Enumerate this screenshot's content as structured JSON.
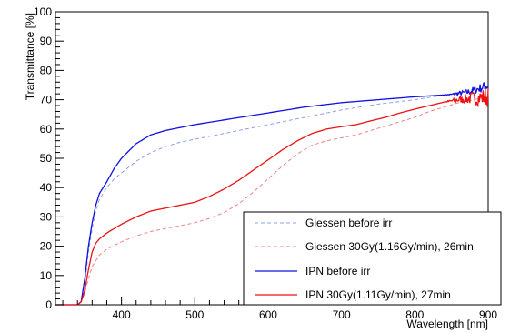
{
  "chart_data": {
    "type": "line",
    "title": "",
    "xlabel": "Wavelength [nm]",
    "ylabel": "Transmittance [%]",
    "xlim": [
      310,
      900
    ],
    "ylim": [
      0,
      100
    ],
    "xticks": [
      400,
      500,
      600,
      700,
      800,
      900
    ],
    "yticks": [
      0,
      10,
      20,
      30,
      40,
      50,
      60,
      70,
      80,
      90,
      100
    ],
    "x_tick_labels": [
      "400",
      "500",
      "600",
      "700",
      "800",
      "900"
    ],
    "y_tick_labels": [
      "0",
      "10",
      "20",
      "30",
      "40",
      "50",
      "60",
      "70",
      "80",
      "90",
      "100"
    ],
    "grid": false,
    "legend_position": "bottom-right",
    "series": [
      {
        "name": "Giessen before irr",
        "color": "#8ca0e6",
        "style": "dashed",
        "points": [
          [
            310,
            0
          ],
          [
            340,
            0
          ],
          [
            345,
            1
          ],
          [
            350,
            7
          ],
          [
            355,
            18
          ],
          [
            360,
            26
          ],
          [
            365,
            32
          ],
          [
            370,
            36
          ],
          [
            380,
            40
          ],
          [
            390,
            43
          ],
          [
            400,
            45
          ],
          [
            420,
            49
          ],
          [
            440,
            52
          ],
          [
            460,
            54
          ],
          [
            480,
            55.5
          ],
          [
            500,
            56.5
          ],
          [
            550,
            59
          ],
          [
            600,
            61.5
          ],
          [
            650,
            64
          ],
          [
            700,
            66.5
          ],
          [
            750,
            68.5
          ],
          [
            800,
            70
          ],
          [
            850,
            72
          ],
          [
            880,
            73.5
          ],
          [
            900,
            74
          ]
        ]
      },
      {
        "name": "Giessen 30Gy(1.16Gy/min), 26min",
        "color": "#f08080",
        "style": "dashed",
        "points": [
          [
            310,
            0
          ],
          [
            340,
            0
          ],
          [
            345,
            1
          ],
          [
            350,
            4
          ],
          [
            355,
            9
          ],
          [
            360,
            13
          ],
          [
            365,
            15
          ],
          [
            370,
            17
          ],
          [
            380,
            19
          ],
          [
            400,
            21.5
          ],
          [
            420,
            23.5
          ],
          [
            440,
            25
          ],
          [
            460,
            26
          ],
          [
            480,
            27
          ],
          [
            500,
            28
          ],
          [
            520,
            29.5
          ],
          [
            540,
            31.5
          ],
          [
            560,
            34.5
          ],
          [
            580,
            38.5
          ],
          [
            600,
            43
          ],
          [
            620,
            47.5
          ],
          [
            640,
            51.5
          ],
          [
            660,
            54.5
          ],
          [
            680,
            56
          ],
          [
            700,
            57
          ],
          [
            720,
            58
          ],
          [
            740,
            59.5
          ],
          [
            760,
            61
          ],
          [
            780,
            62.5
          ],
          [
            800,
            64
          ],
          [
            820,
            66
          ],
          [
            840,
            67.5
          ],
          [
            860,
            69
          ],
          [
            880,
            70
          ],
          [
            900,
            71
          ]
        ]
      },
      {
        "name": "IPN before irr",
        "color": "#1010e0",
        "style": "solid",
        "points": [
          [
            310,
            0
          ],
          [
            340,
            0
          ],
          [
            345,
            1
          ],
          [
            350,
            9
          ],
          [
            355,
            20
          ],
          [
            360,
            28
          ],
          [
            365,
            34
          ],
          [
            370,
            38
          ],
          [
            380,
            42
          ],
          [
            390,
            46.5
          ],
          [
            400,
            50
          ],
          [
            420,
            55
          ],
          [
            440,
            58
          ],
          [
            460,
            59.5
          ],
          [
            480,
            60.5
          ],
          [
            500,
            61.5
          ],
          [
            550,
            63.5
          ],
          [
            600,
            65.5
          ],
          [
            650,
            67.5
          ],
          [
            700,
            69
          ],
          [
            750,
            70
          ],
          [
            800,
            71
          ],
          [
            850,
            71.8
          ],
          [
            870,
            72.5
          ],
          [
            880,
            73.2
          ],
          [
            890,
            74
          ],
          [
            900,
            75
          ]
        ]
      },
      {
        "name": "IPN 30Gy(1.11Gy/min), 27min",
        "color": "#ee1111",
        "style": "solid",
        "points": [
          [
            310,
            0
          ],
          [
            340,
            0
          ],
          [
            345,
            1
          ],
          [
            350,
            5
          ],
          [
            355,
            12
          ],
          [
            360,
            18
          ],
          [
            365,
            21
          ],
          [
            370,
            22.5
          ],
          [
            380,
            24.5
          ],
          [
            400,
            27.5
          ],
          [
            420,
            30
          ],
          [
            440,
            32
          ],
          [
            460,
            33
          ],
          [
            480,
            34
          ],
          [
            500,
            35
          ],
          [
            520,
            37
          ],
          [
            540,
            39.5
          ],
          [
            560,
            42.5
          ],
          [
            580,
            46
          ],
          [
            600,
            49.5
          ],
          [
            620,
            53
          ],
          [
            640,
            56
          ],
          [
            660,
            58.5
          ],
          [
            680,
            60
          ],
          [
            700,
            60.8
          ],
          [
            720,
            61.5
          ],
          [
            740,
            62.8
          ],
          [
            760,
            64
          ],
          [
            780,
            65.5
          ],
          [
            800,
            66.8
          ],
          [
            820,
            68
          ],
          [
            840,
            69.2
          ],
          [
            860,
            70
          ],
          [
            880,
            70.5
          ],
          [
            900,
            71
          ]
        ]
      }
    ]
  }
}
